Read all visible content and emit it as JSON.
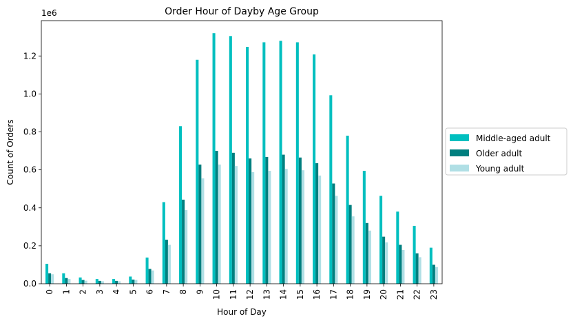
{
  "chart_data": {
    "type": "bar",
    "title": "Order Hour of Dayby Age Group",
    "xlabel": "Hour of Day",
    "ylabel": "Count of Orders",
    "offset_label": "1e6",
    "ylim": [
      0,
      1.386
    ],
    "yticks": [
      0,
      0.2,
      0.4,
      0.6,
      0.8,
      1.0,
      1.2
    ],
    "ytick_labels": [
      "0.0",
      "0.2",
      "0.4",
      "0.6",
      "0.8",
      "1.0",
      "1.2"
    ],
    "categories": [
      "0",
      "1",
      "2",
      "3",
      "4",
      "5",
      "6",
      "7",
      "8",
      "9",
      "10",
      "11",
      "12",
      "13",
      "14",
      "15",
      "16",
      "17",
      "18",
      "19",
      "20",
      "21",
      "22",
      "23"
    ],
    "legend_position": "center-right outside",
    "series": [
      {
        "name": "Middle-aged adult",
        "color": "#00bfbf",
        "values": [
          0.105,
          0.055,
          0.033,
          0.025,
          0.025,
          0.038,
          0.138,
          0.43,
          0.83,
          1.18,
          1.32,
          1.305,
          1.248,
          1.272,
          1.28,
          1.272,
          1.208,
          0.993,
          0.78,
          0.595,
          0.463,
          0.38,
          0.305,
          0.19
        ]
      },
      {
        "name": "Older adult",
        "color": "#007f7f",
        "values": [
          0.055,
          0.03,
          0.02,
          0.015,
          0.015,
          0.022,
          0.078,
          0.232,
          0.443,
          0.628,
          0.7,
          0.69,
          0.66,
          0.668,
          0.68,
          0.665,
          0.635,
          0.528,
          0.415,
          0.32,
          0.248,
          0.205,
          0.16,
          0.1
        ]
      },
      {
        "name": "Young adult",
        "color": "#b0dfe5",
        "values": [
          0.05,
          0.025,
          0.016,
          0.013,
          0.013,
          0.02,
          0.07,
          0.205,
          0.388,
          0.555,
          0.628,
          0.62,
          0.588,
          0.595,
          0.605,
          0.598,
          0.57,
          0.463,
          0.355,
          0.28,
          0.218,
          0.178,
          0.14,
          0.088
        ]
      }
    ]
  }
}
